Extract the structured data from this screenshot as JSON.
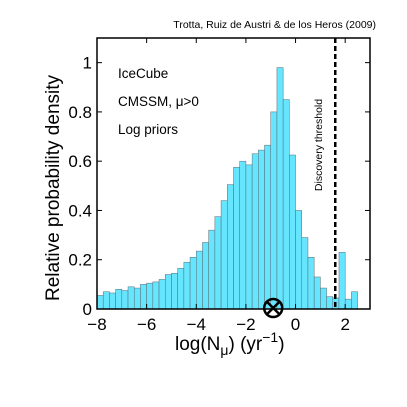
{
  "credit": "Trotta, Ruiz de Austri & de los Heros (2009)",
  "annotations": {
    "line1": "IceCube",
    "line2": "CMSSM, μ>0",
    "line3": "Log priors"
  },
  "threshold_label": "Discovery threshold",
  "chart_data": {
    "type": "bar",
    "title": "",
    "xlabel_parts": {
      "base": "log(N",
      "sub": "μ",
      "mid": ") (yr",
      "sup": "−1",
      "end": ")"
    },
    "ylabel": "Relative probability density",
    "xlim": [
      -8,
      3
    ],
    "ylim": [
      0,
      1.1
    ],
    "xticks": [
      -8,
      -6,
      -4,
      -2,
      0,
      2
    ],
    "xtick_labels": [
      "−8",
      "−6",
      "−4",
      "−2",
      "0",
      "2"
    ],
    "yticks": [
      0,
      0.2,
      0.4,
      0.6,
      0.8,
      1
    ],
    "ytick_labels": [
      "0",
      "0.2",
      "0.4",
      "0.6",
      "0.8",
      "1"
    ],
    "bar_color": "#66e5ff",
    "bin_edges": [
      -8.0,
      -7.75,
      -7.5,
      -7.25,
      -7.0,
      -6.75,
      -6.5,
      -6.25,
      -6.0,
      -5.75,
      -5.5,
      -5.25,
      -5.0,
      -4.75,
      -4.5,
      -4.25,
      -4.0,
      -3.75,
      -3.5,
      -3.25,
      -3.0,
      -2.75,
      -2.5,
      -2.25,
      -2.0,
      -1.75,
      -1.5,
      -1.25,
      -1.0,
      -0.75,
      -0.5,
      -0.25,
      0.0,
      0.25,
      0.5,
      0.75,
      1.0,
      1.25,
      1.5,
      1.75,
      2.0,
      2.25
    ],
    "values": [
      0.055,
      0.07,
      0.065,
      0.08,
      0.075,
      0.09,
      0.085,
      0.1,
      0.105,
      0.11,
      0.12,
      0.14,
      0.145,
      0.165,
      0.19,
      0.21,
      0.235,
      0.27,
      0.32,
      0.375,
      0.44,
      0.505,
      0.575,
      0.6,
      0.585,
      0.63,
      0.645,
      0.665,
      0.8,
      0.98,
      0.85,
      0.625,
      0.4,
      0.29,
      0.21,
      0.13,
      0.085,
      0.05,
      0.045,
      0.23,
      0.04,
      0.07
    ],
    "vline": {
      "x": 1.6,
      "style": "dashed"
    },
    "marker": {
      "x": -0.9,
      "y": 0,
      "symbol": "circled-x"
    }
  }
}
